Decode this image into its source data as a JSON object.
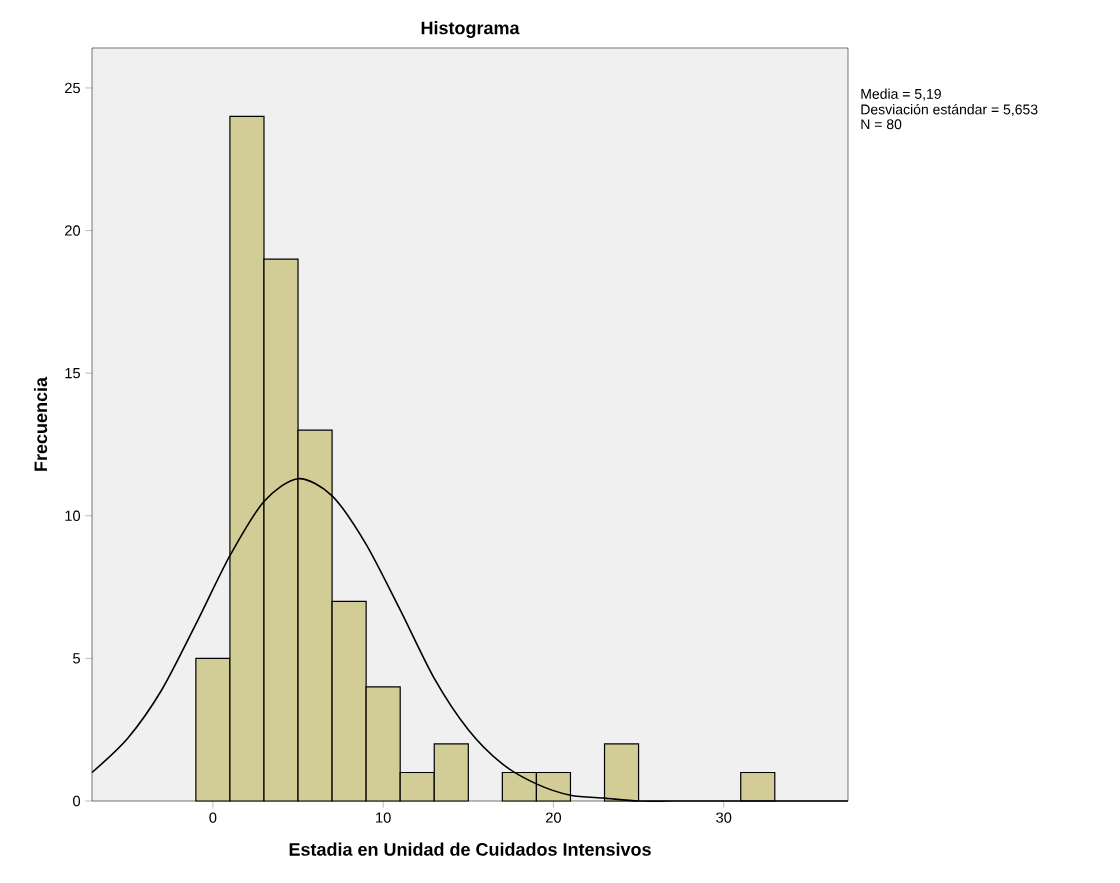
{
  "chart_data": {
    "type": "histogram",
    "title": "Histograma",
    "xlabel": "Estadia en Unidad de Cuidados Intensivos",
    "ylabel": "Frecuencia",
    "bins": [
      -1,
      1,
      3,
      5,
      7,
      9,
      11,
      13,
      15,
      17,
      19,
      21,
      23,
      25,
      27,
      29,
      31,
      33
    ],
    "values": [
      5,
      24,
      19,
      13,
      7,
      4,
      1,
      2,
      0,
      1,
      1,
      0,
      2,
      0,
      0,
      0,
      1
    ],
    "color": "#d2cd97",
    "series": [
      {
        "type": "line",
        "color": "#000000",
        "marker": "none",
        "x": [
          -7.1,
          -5,
          -3,
          -1,
          1,
          3,
          5,
          7,
          9,
          11,
          13,
          15,
          17,
          19,
          21,
          23,
          25,
          27,
          30,
          37.3
        ],
        "values": [
          1.0,
          2.2,
          3.9,
          6.2,
          8.6,
          10.5,
          11.3,
          10.7,
          9.0,
          6.7,
          4.3,
          2.5,
          1.3,
          0.6,
          0.2,
          0.1,
          0.0,
          0.0,
          0.0,
          0.0
        ]
      }
    ],
    "xlim": [
      -7.1,
      37.3
    ],
    "ylim": [
      0,
      26.4
    ],
    "xticks": [
      0,
      10,
      20,
      30
    ],
    "yticks": [
      0,
      5,
      10,
      15,
      20,
      25
    ],
    "grid": false,
    "annotations": [
      "Media = 5,19",
      "Desviación estándar = 5,653",
      "N = 80"
    ]
  }
}
